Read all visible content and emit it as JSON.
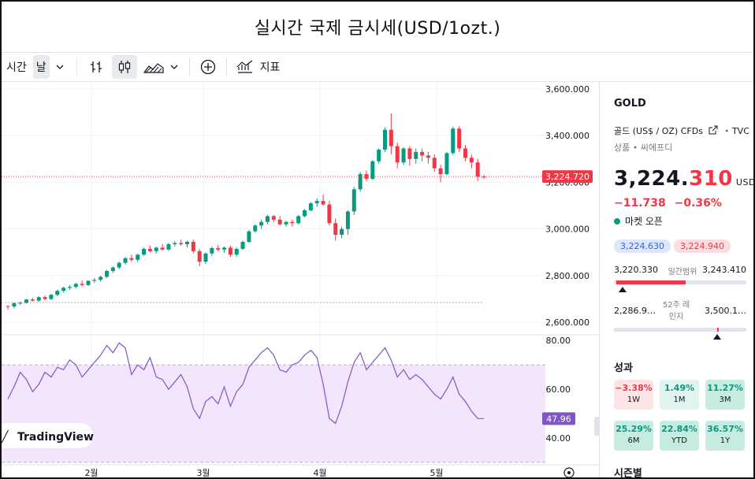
{
  "title": "실시간 국제 금시세(USD/1ozt.)",
  "toolbar": {
    "time_label": "시간",
    "interval": "날",
    "indicators_label": "지표"
  },
  "chart_data": {
    "type": "candlestick",
    "price_axis": {
      "ylim": [
        2550,
        3630
      ],
      "ticks": [
        "3,600.000",
        "3,400.000",
        "3,200.000",
        "3,000.000",
        "2,800.000",
        "2,600.000"
      ]
    },
    "time_axis": {
      "ticks": [
        "2월",
        "3월",
        "4월",
        "5월"
      ]
    },
    "last_price_label": "3,224.720",
    "price_line": 3224.72,
    "reference_line": 2685,
    "candles": [
      [
        2670,
        2672,
        2655,
        2668
      ],
      [
        2668,
        2685,
        2660,
        2682
      ],
      [
        2682,
        2688,
        2674,
        2684
      ],
      [
        2684,
        2700,
        2680,
        2698
      ],
      [
        2698,
        2705,
        2690,
        2693
      ],
      [
        2693,
        2712,
        2688,
        2708
      ],
      [
        2708,
        2715,
        2695,
        2700
      ],
      [
        2700,
        2722,
        2696,
        2718
      ],
      [
        2718,
        2740,
        2712,
        2735
      ],
      [
        2735,
        2752,
        2728,
        2748
      ],
      [
        2748,
        2760,
        2740,
        2752
      ],
      [
        2752,
        2770,
        2746,
        2765
      ],
      [
        2765,
        2780,
        2752,
        2760
      ],
      [
        2760,
        2780,
        2755,
        2778
      ],
      [
        2778,
        2790,
        2770,
        2782
      ],
      [
        2782,
        2800,
        2775,
        2795
      ],
      [
        2795,
        2825,
        2790,
        2820
      ],
      [
        2820,
        2840,
        2812,
        2835
      ],
      [
        2835,
        2860,
        2828,
        2855
      ],
      [
        2855,
        2880,
        2848,
        2875
      ],
      [
        2875,
        2890,
        2860,
        2868
      ],
      [
        2868,
        2895,
        2860,
        2890
      ],
      [
        2890,
        2920,
        2885,
        2915
      ],
      [
        2915,
        2930,
        2900,
        2905
      ],
      [
        2905,
        2925,
        2895,
        2920
      ],
      [
        2920,
        2935,
        2908,
        2912
      ],
      [
        2912,
        2940,
        2906,
        2935
      ],
      [
        2935,
        2948,
        2925,
        2940
      ],
      [
        2940,
        2955,
        2928,
        2935
      ],
      [
        2935,
        2950,
        2920,
        2945
      ],
      [
        2945,
        2955,
        2895,
        2905
      ],
      [
        2905,
        2915,
        2840,
        2860
      ],
      [
        2860,
        2900,
        2850,
        2895
      ],
      [
        2895,
        2925,
        2885,
        2918
      ],
      [
        2918,
        2932,
        2905,
        2912
      ],
      [
        2912,
        2925,
        2898,
        2920
      ],
      [
        2920,
        2930,
        2880,
        2890
      ],
      [
        2890,
        2920,
        2882,
        2915
      ],
      [
        2915,
        2950,
        2910,
        2945
      ],
      [
        2945,
        2995,
        2940,
        2990
      ],
      [
        2990,
        3020,
        2985,
        3015
      ],
      [
        3015,
        3040,
        3000,
        3030
      ],
      [
        3030,
        3060,
        3020,
        3055
      ],
      [
        3055,
        3060,
        3030,
        3040
      ],
      [
        3040,
        3055,
        3015,
        3020
      ],
      [
        3020,
        3035,
        3010,
        3030
      ],
      [
        3030,
        3040,
        3010,
        3025
      ],
      [
        3025,
        3060,
        3020,
        3055
      ],
      [
        3055,
        3085,
        3050,
        3080
      ],
      [
        3080,
        3115,
        3075,
        3110
      ],
      [
        3110,
        3130,
        3095,
        3120
      ],
      [
        3120,
        3148,
        3100,
        3105
      ],
      [
        3105,
        3120,
        3015,
        3025
      ],
      [
        3025,
        3045,
        2950,
        2975
      ],
      [
        2975,
        3010,
        2960,
        3000
      ],
      [
        3000,
        3080,
        2975,
        3075
      ],
      [
        3075,
        3180,
        3060,
        3170
      ],
      [
        3170,
        3245,
        3160,
        3235
      ],
      [
        3235,
        3250,
        3205,
        3215
      ],
      [
        3215,
        3295,
        3210,
        3290
      ],
      [
        3290,
        3345,
        3280,
        3340
      ],
      [
        3340,
        3435,
        3330,
        3425
      ],
      [
        3425,
        3495,
        3320,
        3355
      ],
      [
        3355,
        3370,
        3260,
        3285
      ],
      [
        3285,
        3350,
        3275,
        3345
      ],
      [
        3345,
        3355,
        3270,
        3300
      ],
      [
        3300,
        3345,
        3280,
        3330
      ],
      [
        3330,
        3345,
        3290,
        3315
      ],
      [
        3315,
        3330,
        3280,
        3305
      ],
      [
        3305,
        3320,
        3245,
        3260
      ],
      [
        3260,
        3275,
        3200,
        3235
      ],
      [
        3235,
        3330,
        3230,
        3325
      ],
      [
        3325,
        3438,
        3318,
        3430
      ],
      [
        3430,
        3440,
        3330,
        3345
      ],
      [
        3345,
        3360,
        3290,
        3305
      ],
      [
        3305,
        3320,
        3260,
        3285
      ],
      [
        3285,
        3300,
        3205,
        3225
      ],
      [
        3225,
        3232,
        3215,
        3224.72
      ]
    ],
    "rsi": {
      "axis": {
        "ylim": [
          29,
          82
        ],
        "ticks": [
          "80.00",
          "60.00",
          "40.00"
        ]
      },
      "band": [
        30,
        70
      ],
      "last_label": "47.96",
      "values": [
        56,
        61,
        67,
        64,
        59,
        62,
        67,
        65,
        69,
        68,
        72,
        70,
        65,
        68,
        71,
        74,
        78,
        75,
        79,
        77,
        66,
        70,
        68,
        73,
        65,
        64,
        60,
        63,
        66,
        61,
        52,
        48,
        55,
        57,
        54,
        61,
        53,
        59,
        62,
        69,
        72,
        75,
        77,
        74,
        68,
        67,
        70,
        71,
        74,
        76,
        73,
        62,
        48,
        46,
        53,
        63,
        71,
        75,
        68,
        71,
        74,
        77,
        72,
        65,
        68,
        64,
        66,
        64,
        61,
        58,
        56,
        60,
        65,
        58,
        55,
        51,
        48,
        47.96
      ]
    },
    "watermark": "TradingView"
  },
  "side": {
    "symbol": "GOLD",
    "description": "골드 (US$ / OZ) CFDs",
    "source": "TVC",
    "sub": "상품 • 씨에프디",
    "price_main": "3,224.",
    "price_dec": "310",
    "currency": "USD",
    "change": "−11.738",
    "change_pct": "−0.36%",
    "market_status": "마켓 오픈",
    "bid": "3,224.630",
    "ask": "3,224.940",
    "day_low": "3,220.330",
    "day_label": "일간범위",
    "day_high": "3,243.410",
    "day_position": 0.02,
    "wk_low": "2,286.9…",
    "wk_label": "52주 레인지",
    "wk_high": "3,500.1…",
    "wk_position": 0.78,
    "perf_title": "성과",
    "perf": [
      {
        "value": "−3.38%",
        "period": "1W",
        "tone": "neg"
      },
      {
        "value": "1.49%",
        "period": "1M",
        "tone": "pos"
      },
      {
        "value": "11.27%",
        "period": "3M",
        "tone": "posd"
      },
      {
        "value": "25.29%",
        "period": "6M",
        "tone": "posd"
      },
      {
        "value": "22.84%",
        "period": "YTD",
        "tone": "posd"
      },
      {
        "value": "36.57%",
        "period": "1Y",
        "tone": "posd"
      }
    ],
    "season_title": "시즌별"
  },
  "colors": {
    "up": "#089981",
    "down": "#f23645",
    "rsi": "#7e57c2",
    "rsi_band": "#f3e5fc"
  }
}
